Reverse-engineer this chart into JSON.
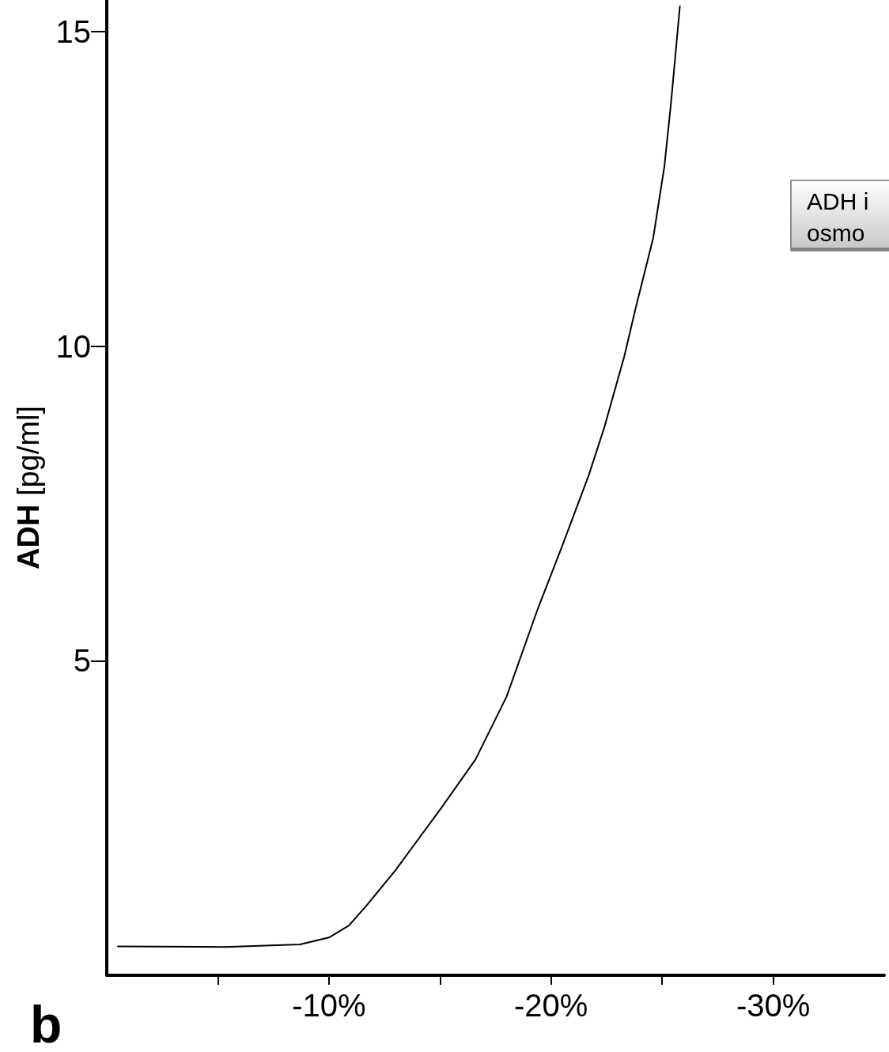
{
  "chart_data": {
    "type": "line",
    "ylabel": "ADH [pg/ml]",
    "x": [
      -0.5,
      -5.3,
      -8.7,
      -10,
      -10.9,
      -11.7,
      -13,
      -15.1,
      -16.6,
      -18,
      -19.4,
      -20.5,
      -21.7,
      -22.4,
      -23.3,
      -23.8,
      -24.6,
      -25.1,
      -25.4,
      -25.8
    ],
    "series": [
      {
        "color": "#000000",
        "values": [
          0.46,
          0.45,
          0.49,
          0.6,
          0.79,
          1.11,
          1.67,
          2.68,
          3.43,
          4.43,
          5.82,
          6.82,
          7.95,
          8.71,
          9.84,
          10.59,
          11.72,
          12.85,
          13.86,
          15.4
        ]
      }
    ],
    "xlim": [
      0,
      -35
    ],
    "xticks": [
      {
        "value": -5,
        "label": null
      },
      {
        "value": -10,
        "label": "-10%"
      },
      {
        "value": -15,
        "label": null
      },
      {
        "value": -20,
        "label": "-20%"
      },
      {
        "value": -25,
        "label": null
      },
      {
        "value": -30,
        "label": "-30%"
      }
    ],
    "ylim": [
      0,
      15.5
    ],
    "yticks": [
      5,
      10,
      15
    ],
    "annotations": [
      "ADH i\nosmo",
      "b"
    ],
    "grid": false,
    "marker": "none",
    "line_style": "solid"
  }
}
